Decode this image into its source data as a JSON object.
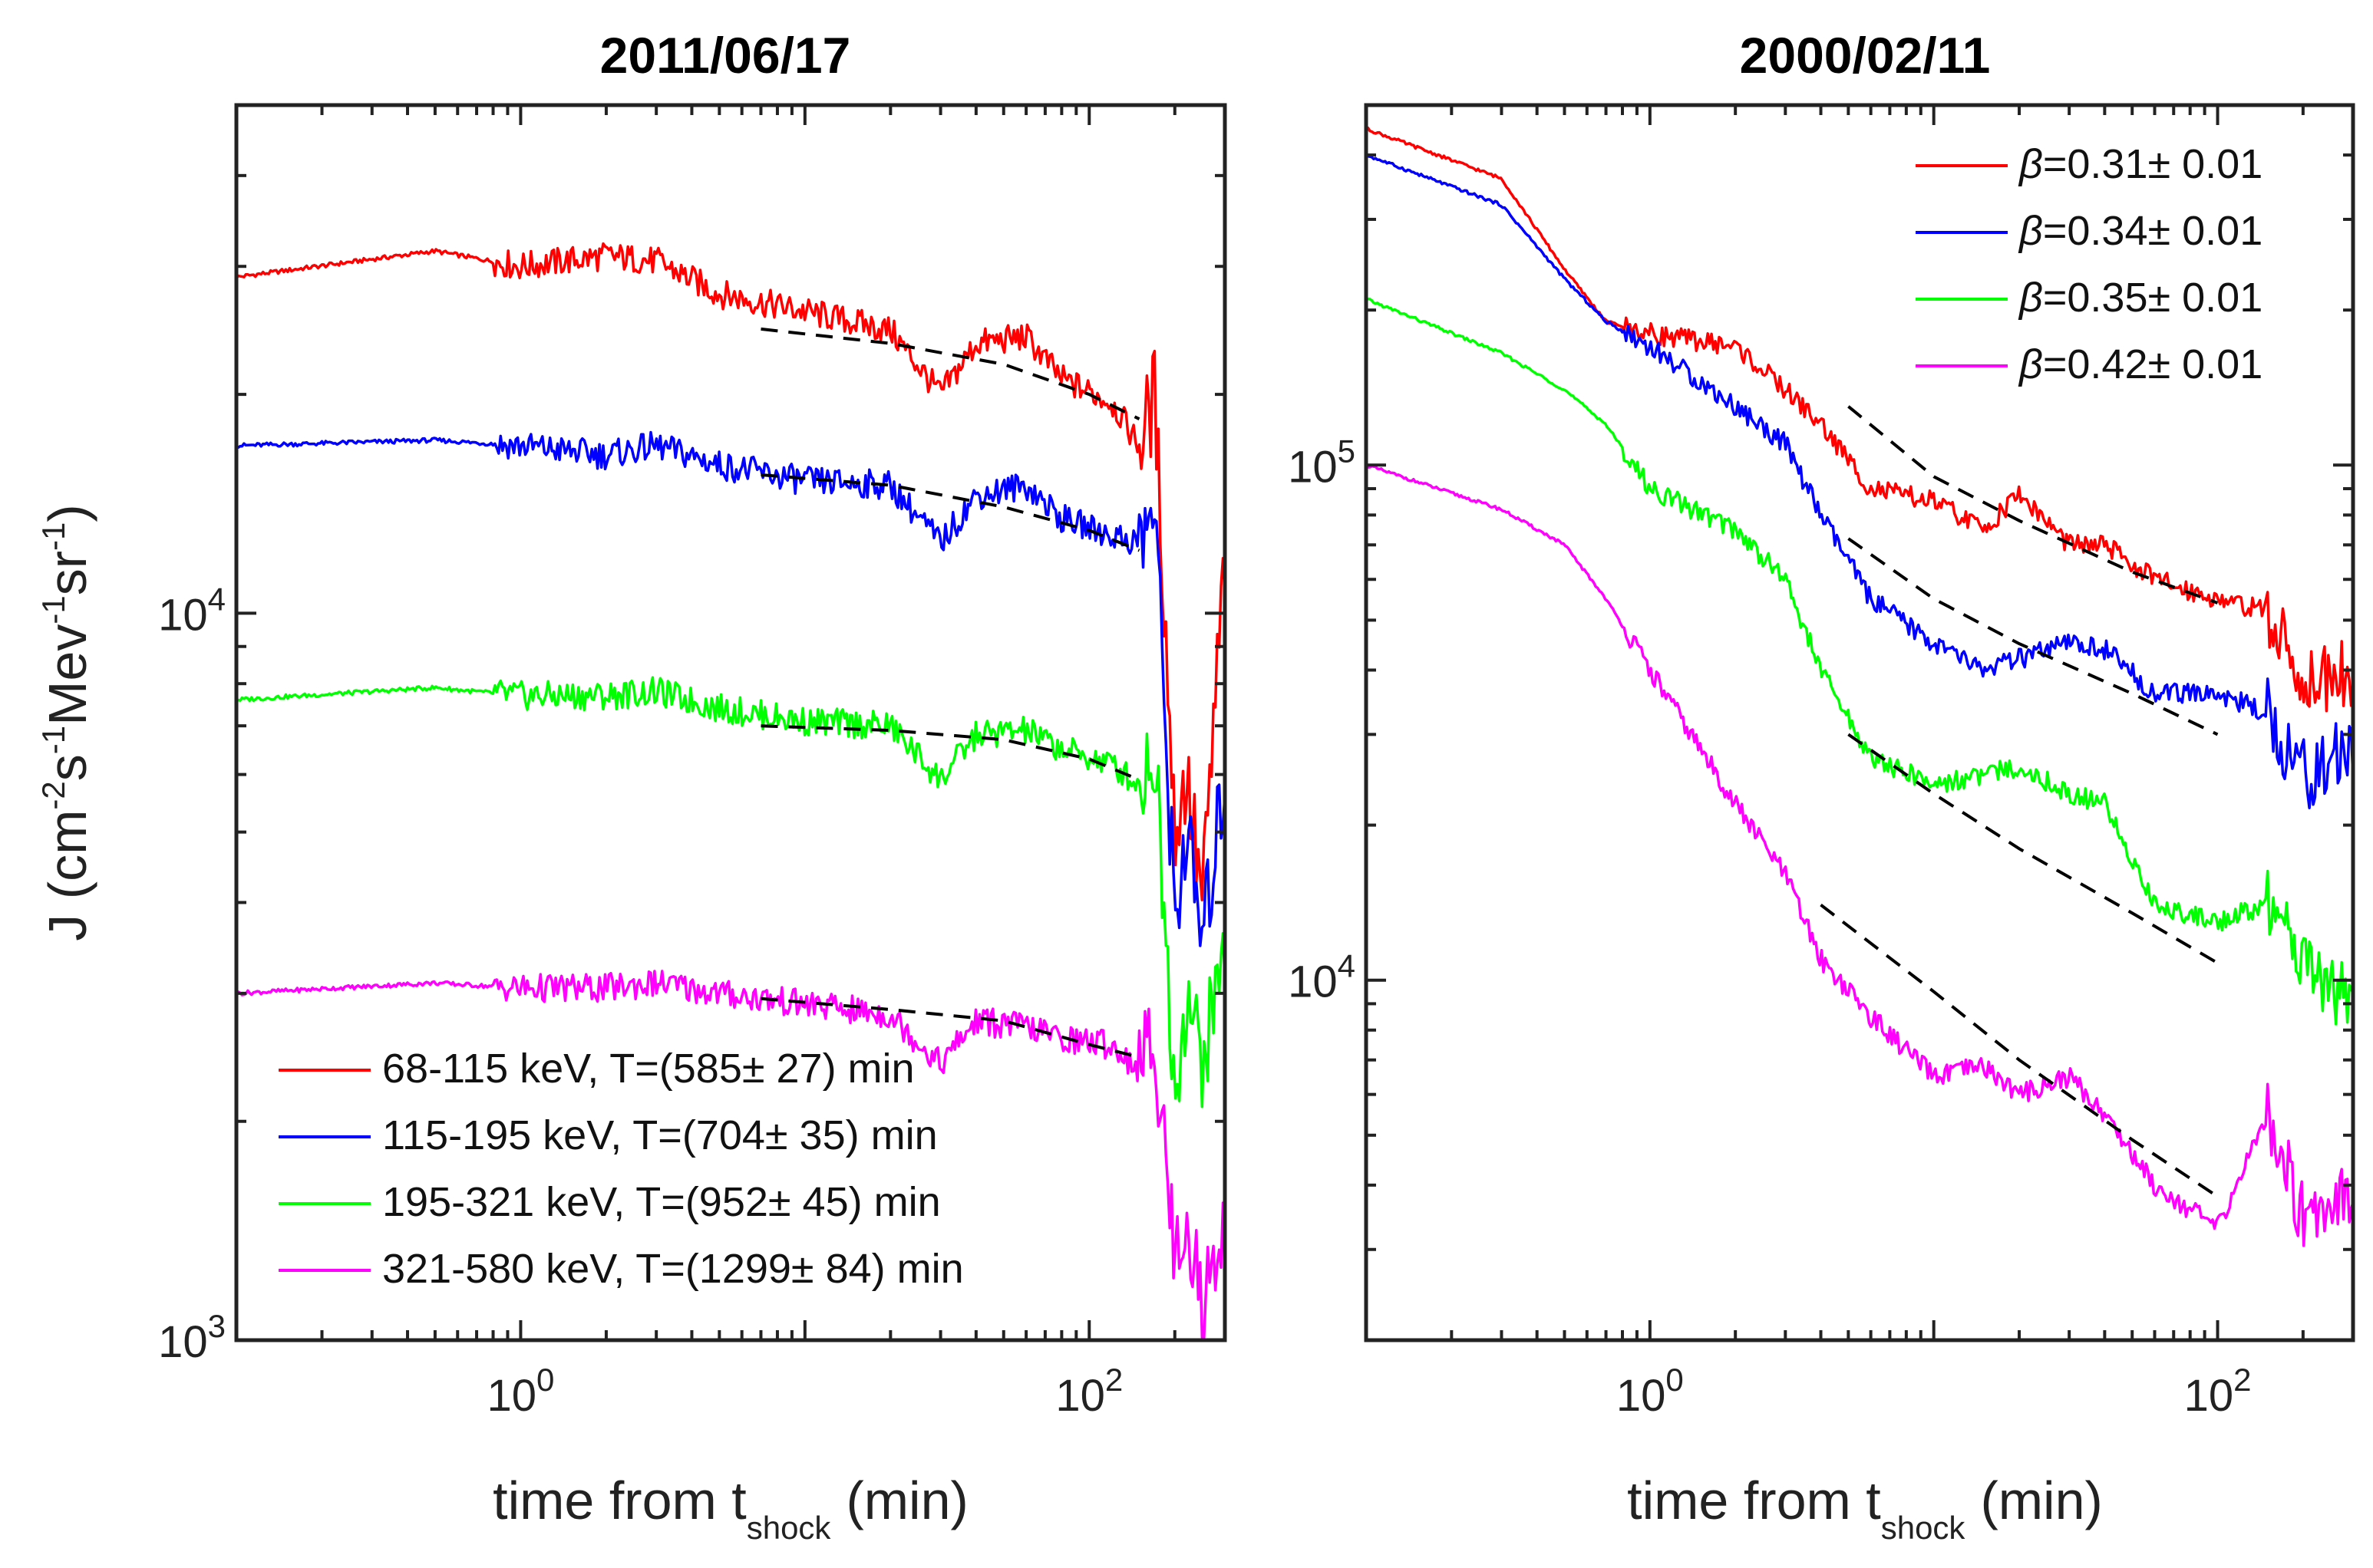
{
  "chart_data": [
    {
      "type": "line",
      "title": "2011/06/17",
      "xlabel": "time from t",
      "xlabel_sub": "shock",
      "xlabel_unit": "(min)",
      "ylabel": "J (cm",
      "ylabel_parts": [
        "J (cm",
        "-2",
        "s",
        "-1",
        "Mev",
        "-1",
        "sr",
        "-1",
        ")"
      ],
      "xscale": "log",
      "yscale": "log",
      "xlim": [
        0.1,
        300
      ],
      "ylim": [
        1000,
        50000
      ],
      "xticks": [
        {
          "value": 1,
          "base": "10",
          "exp": "0"
        },
        {
          "value": 100,
          "base": "10",
          "exp": "2"
        }
      ],
      "yticks": [
        {
          "value": 1000,
          "base": "10",
          "exp": "3"
        },
        {
          "value": 10000,
          "base": "10",
          "exp": "4"
        }
      ],
      "legend_position": "bottom-left",
      "series": [
        {
          "name": "68-115 keV, T=(585± 27) min",
          "color": "#ff0000",
          "trend": [
            [
              0.1,
              29000
            ],
            [
              0.5,
              31500
            ],
            [
              1,
              30000
            ],
            [
              2,
              31000
            ],
            [
              3,
              30500
            ],
            [
              5,
              27500
            ],
            [
              10,
              26000
            ],
            [
              20,
              24500
            ],
            [
              30,
              20000
            ],
            [
              40,
              23500
            ],
            [
              60,
              24000
            ],
            [
              80,
              21000
            ],
            [
              120,
              19500
            ],
            [
              150,
              17000
            ],
            [
              170,
              20000
            ],
            [
              200,
              5000
            ],
            [
              220,
              6000
            ],
            [
              250,
              4000
            ],
            [
              300,
              12000
            ]
          ],
          "fit": [
            [
              7,
              24600
            ],
            [
              20,
              23500
            ],
            [
              50,
              22000
            ],
            [
              100,
              20000
            ],
            [
              150,
              18500
            ]
          ]
        },
        {
          "name": "115-195 keV, T=(704± 35) min",
          "color": "#0000ff",
          "trend": [
            [
              0.1,
              17000
            ],
            [
              0.5,
              17300
            ],
            [
              1,
              17000
            ],
            [
              2,
              16500
            ],
            [
              3,
              17000
            ],
            [
              5,
              16000
            ],
            [
              10,
              15200
            ],
            [
              20,
              15000
            ],
            [
              30,
              12500
            ],
            [
              40,
              14500
            ],
            [
              60,
              15000
            ],
            [
              80,
              13500
            ],
            [
              120,
              12800
            ],
            [
              150,
              12500
            ],
            [
              170,
              14000
            ],
            [
              200,
              3800
            ],
            [
              220,
              5000
            ],
            [
              250,
              3500
            ],
            [
              300,
              6000
            ]
          ],
          "fit": [
            [
              7,
              15500
            ],
            [
              20,
              15000
            ],
            [
              50,
              14000
            ],
            [
              100,
              13000
            ],
            [
              150,
              12200
            ]
          ]
        },
        {
          "name": "195-321 keV, T=(952± 45) min",
          "color": "#00ff00",
          "trend": [
            [
              0.1,
              7600
            ],
            [
              0.5,
              7900
            ],
            [
              1,
              7700
            ],
            [
              2,
              7700
            ],
            [
              3,
              7800
            ],
            [
              5,
              7400
            ],
            [
              10,
              7100
            ],
            [
              20,
              7000
            ],
            [
              30,
              5900
            ],
            [
              40,
              6800
            ],
            [
              60,
              6900
            ],
            [
              80,
              6500
            ],
            [
              120,
              6200
            ],
            [
              150,
              5800
            ],
            [
              170,
              6500
            ],
            [
              200,
              2200
            ],
            [
              220,
              3000
            ],
            [
              250,
              2400
            ],
            [
              300,
              3500
            ]
          ],
          "fit": [
            [
              7,
              7000
            ],
            [
              20,
              6900
            ],
            [
              50,
              6700
            ],
            [
              100,
              6300
            ],
            [
              150,
              5900
            ]
          ]
        },
        {
          "name": "321-580 keV, T=(1299± 84) min",
          "color": "#ff00ff",
          "trend": [
            [
              0.1,
              3000
            ],
            [
              0.5,
              3100
            ],
            [
              1,
              3050
            ],
            [
              2,
              3050
            ],
            [
              3,
              3100
            ],
            [
              5,
              3000
            ],
            [
              10,
              2900
            ],
            [
              20,
              2800
            ],
            [
              30,
              2400
            ],
            [
              40,
              2750
            ],
            [
              60,
              2700
            ],
            [
              80,
              2600
            ],
            [
              120,
              2550
            ],
            [
              150,
              2350
            ],
            [
              170,
              2600
            ],
            [
              200,
              1300
            ],
            [
              220,
              1500
            ],
            [
              250,
              1100
            ],
            [
              300,
              1500
            ]
          ],
          "fit": [
            [
              7,
              2950
            ],
            [
              20,
              2850
            ],
            [
              50,
              2750
            ],
            [
              100,
              2550
            ],
            [
              150,
              2450
            ]
          ]
        }
      ]
    },
    {
      "type": "line",
      "title": "2000/02/11",
      "xlabel": "time from t",
      "xlabel_sub": "shock",
      "xlabel_unit": "(min)",
      "xscale": "log",
      "yscale": "log",
      "xlim": [
        0.1,
        300
      ],
      "ylim": [
        2000,
        500000
      ],
      "xticks": [
        {
          "value": 1,
          "base": "10",
          "exp": "0"
        },
        {
          "value": 100,
          "base": "10",
          "exp": "2"
        }
      ],
      "yticks": [
        {
          "value": 10000,
          "base": "10",
          "exp": "4"
        },
        {
          "value": 100000,
          "base": "10",
          "exp": "5"
        }
      ],
      "legend_position": "top-right",
      "legend_symbol": "β",
      "series": [
        {
          "name": "=0.31± 0.01",
          "color": "#ff0000",
          "trend": [
            [
              0.1,
              450000
            ],
            [
              0.3,
              360000
            ],
            [
              0.5,
              240000
            ],
            [
              0.7,
              190000
            ],
            [
              1,
              180000
            ],
            [
              2,
              170000
            ],
            [
              3,
              140000
            ],
            [
              4,
              120000
            ],
            [
              6,
              90000
            ],
            [
              10,
              85000
            ],
            [
              15,
              75000
            ],
            [
              20,
              88000
            ],
            [
              30,
              70000
            ],
            [
              40,
              70000
            ],
            [
              60,
              60000
            ],
            [
              100,
              55000
            ],
            [
              150,
              52000
            ],
            [
              200,
              38000
            ],
            [
              300,
              40000
            ]
          ],
          "fit": [
            [
              5,
              130000
            ],
            [
              10,
              95000
            ],
            [
              20,
              78000
            ],
            [
              50,
              62000
            ],
            [
              100,
              54000
            ]
          ]
        },
        {
          "name": "=0.34± 0.01",
          "color": "#0000ff",
          "trend": [
            [
              0.1,
              400000
            ],
            [
              0.3,
              320000
            ],
            [
              0.5,
              230000
            ],
            [
              0.7,
              190000
            ],
            [
              1,
              170000
            ],
            [
              2,
              130000
            ],
            [
              3,
              110000
            ],
            [
              4,
              80000
            ],
            [
              6,
              55000
            ],
            [
              10,
              45000
            ],
            [
              15,
              40000
            ],
            [
              20,
              42000
            ],
            [
              30,
              45000
            ],
            [
              40,
              44000
            ],
            [
              60,
              36000
            ],
            [
              100,
              36000
            ],
            [
              150,
              33000
            ],
            [
              200,
              25000
            ],
            [
              300,
              28000
            ]
          ],
          "fit": [
            [
              5,
              72000
            ],
            [
              10,
              55000
            ],
            [
              20,
              45000
            ],
            [
              50,
              36000
            ],
            [
              100,
              30000
            ]
          ]
        },
        {
          "name": "=0.35± 0.01",
          "color": "#00ff00",
          "trend": [
            [
              0.1,
              210000
            ],
            [
              0.3,
              165000
            ],
            [
              0.5,
              140000
            ],
            [
              0.7,
              120000
            ],
            [
              1,
              90000
            ],
            [
              2,
              75000
            ],
            [
              3,
              60000
            ],
            [
              4,
              40000
            ],
            [
              6,
              27000
            ],
            [
              10,
              24000
            ],
            [
              15,
              25000
            ],
            [
              20,
              26000
            ],
            [
              30,
              23000
            ],
            [
              40,
              22000
            ],
            [
              60,
              14000
            ],
            [
              100,
              13000
            ],
            [
              150,
              14000
            ],
            [
              200,
              11000
            ],
            [
              300,
              9000
            ]
          ],
          "fit": [
            [
              5,
              30000
            ],
            [
              10,
              23000
            ],
            [
              20,
              18000
            ],
            [
              50,
              13500
            ],
            [
              100,
              10800
            ]
          ]
        },
        {
          "name": "=0.42± 0.01",
          "color": "#ff00ff",
          "trend": [
            [
              0.1,
              100000
            ],
            [
              0.3,
              82000
            ],
            [
              0.5,
              70000
            ],
            [
              0.7,
              55000
            ],
            [
              1,
              40000
            ],
            [
              2,
              22000
            ],
            [
              3,
              16000
            ],
            [
              4,
              11000
            ],
            [
              6,
              8500
            ],
            [
              10,
              6500
            ],
            [
              15,
              6800
            ],
            [
              20,
              6000
            ],
            [
              30,
              6500
            ],
            [
              40,
              5500
            ],
            [
              60,
              4000
            ],
            [
              100,
              3300
            ],
            [
              150,
              5500
            ],
            [
              200,
              3500
            ],
            [
              300,
              4000
            ]
          ],
          "fit": [
            [
              4,
              14000
            ],
            [
              10,
              9500
            ],
            [
              20,
              7000
            ],
            [
              50,
              4900
            ],
            [
              100,
              3800
            ]
          ]
        }
      ]
    }
  ]
}
